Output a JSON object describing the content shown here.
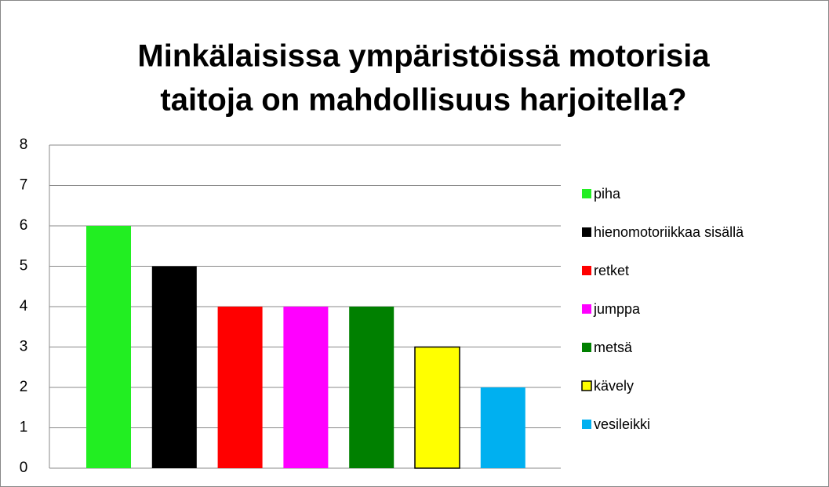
{
  "chart_data": {
    "type": "bar",
    "title": [
      "Minkälaisissa ympäristöissä motorisia",
      "taitoja on mahdollisuus harjoitella?"
    ],
    "series": [
      {
        "name": "piha",
        "color": "#22ee22",
        "values": [
          6
        ]
      },
      {
        "name": "hienomotoriikkaa sisällä",
        "color": "#000000",
        "values": [
          5
        ]
      },
      {
        "name": "retket",
        "color": "#ff0000",
        "values": [
          4
        ]
      },
      {
        "name": "jumppa",
        "color": "#ff00ff",
        "values": [
          4
        ]
      },
      {
        "name": "metsä",
        "color": "#008000",
        "values": [
          4
        ]
      },
      {
        "name": "kävely",
        "color": "#ffff00",
        "values": [
          3
        ],
        "outline": "#000000"
      },
      {
        "name": "vesileikki",
        "color": "#00b0f0",
        "values": [
          2
        ]
      }
    ],
    "ylim": [
      0,
      8
    ],
    "yticks": [
      0,
      1,
      2,
      3,
      4,
      5,
      6,
      7,
      8
    ],
    "grid": true,
    "legend": "right"
  }
}
